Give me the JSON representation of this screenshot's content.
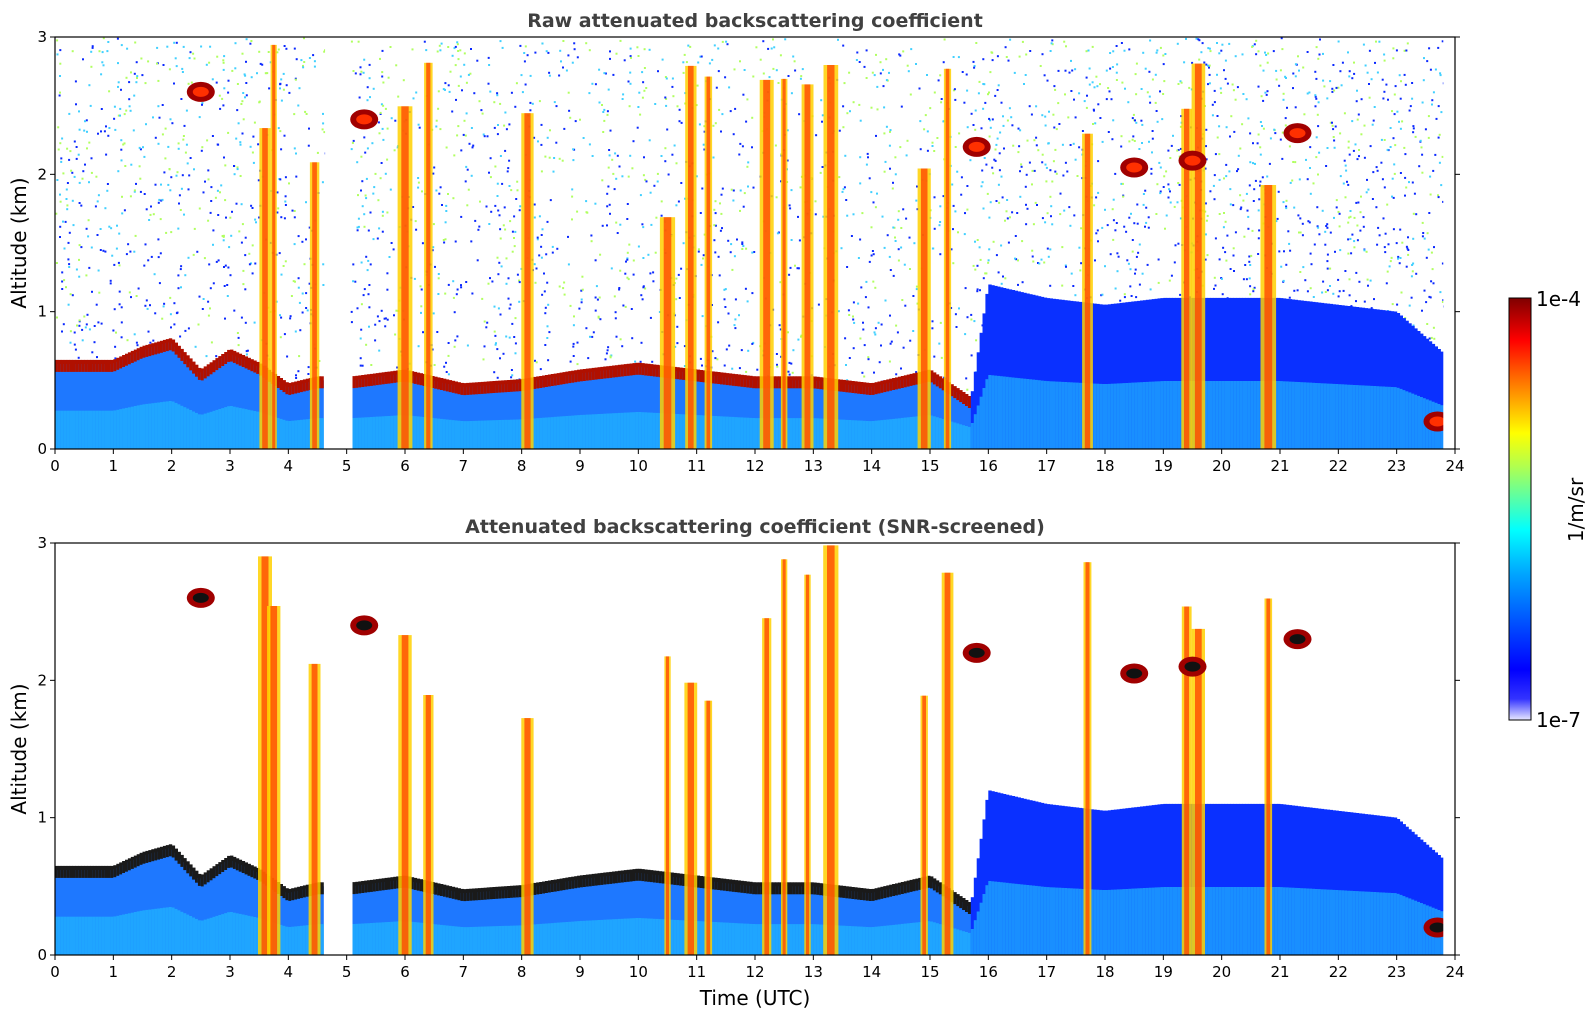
{
  "chart_data": [
    {
      "type": "heatmap",
      "title": "Raw attenuated backscattering coefficient",
      "xlabel": "",
      "ylabel": "Altitude (km)",
      "xlim": [
        0,
        24
      ],
      "ylim": [
        0,
        3
      ],
      "xticks": [
        "0",
        "1",
        "2",
        "3",
        "4",
        "5",
        "6",
        "7",
        "8",
        "9",
        "10",
        "11",
        "12",
        "13",
        "14",
        "15",
        "16",
        "17",
        "18",
        "19",
        "20",
        "21",
        "22",
        "23",
        "24"
      ],
      "yticks": [
        "0",
        "1",
        "2",
        "3"
      ],
      "data_gap_hours": [
        4.63,
        5.05
      ],
      "boundary_layer_top_km": [
        [
          0.0,
          0.62
        ],
        [
          1.0,
          0.62
        ],
        [
          1.5,
          0.72
        ],
        [
          2.0,
          0.78
        ],
        [
          2.5,
          0.55
        ],
        [
          3.0,
          0.7
        ],
        [
          3.5,
          0.6
        ],
        [
          4.0,
          0.45
        ],
        [
          4.5,
          0.5
        ],
        [
          5.1,
          0.5
        ],
        [
          6.0,
          0.55
        ],
        [
          7.0,
          0.45
        ],
        [
          8.0,
          0.48
        ],
        [
          9.0,
          0.55
        ],
        [
          10.0,
          0.6
        ],
        [
          11.0,
          0.55
        ],
        [
          12.0,
          0.5
        ],
        [
          13.0,
          0.5
        ],
        [
          14.0,
          0.45
        ],
        [
          15.0,
          0.55
        ],
        [
          15.7,
          0.35
        ],
        [
          16.0,
          1.2
        ],
        [
          17.0,
          1.1
        ],
        [
          18.0,
          1.05
        ],
        [
          19.0,
          1.1
        ],
        [
          20.0,
          1.1
        ],
        [
          21.0,
          1.1
        ],
        [
          22.0,
          1.05
        ],
        [
          23.0,
          1.0
        ],
        [
          23.8,
          0.7
        ]
      ],
      "precipitation_streaks_hours": [
        3.6,
        3.75,
        4.45,
        6.0,
        6.4,
        8.1,
        10.5,
        10.9,
        11.2,
        12.2,
        12.5,
        12.9,
        13.3,
        14.9,
        15.3,
        17.7,
        19.4,
        19.6,
        20.8
      ],
      "cloud_patches": [
        {
          "t": 2.5,
          "z": 2.6
        },
        {
          "t": 5.3,
          "z": 2.4
        },
        {
          "t": 15.8,
          "z": 2.2
        },
        {
          "t": 18.5,
          "z": 2.05
        },
        {
          "t": 19.5,
          "z": 2.1
        },
        {
          "t": 21.3,
          "z": 2.3
        },
        {
          "t": 23.7,
          "z": 0.2
        }
      ]
    },
    {
      "type": "heatmap",
      "title": "Attenuated backscattering coefficient (SNR-screened)",
      "xlabel": "Time (UTC)",
      "ylabel": "Altitude (km)",
      "xlim": [
        0,
        24
      ],
      "ylim": [
        0,
        3
      ],
      "xticks": [
        "0",
        "1",
        "2",
        "3",
        "4",
        "5",
        "6",
        "7",
        "8",
        "9",
        "10",
        "11",
        "12",
        "13",
        "14",
        "15",
        "16",
        "17",
        "18",
        "19",
        "20",
        "21",
        "22",
        "23",
        "24"
      ],
      "yticks": [
        "0",
        "1",
        "2",
        "3"
      ],
      "screened": true
    }
  ],
  "colorbar": {
    "label": "1/m/sr",
    "max_label": "1e-4",
    "min_label": "1e-7",
    "colormap": "jet",
    "colors": [
      "#0000b4",
      "#0000ff",
      "#00ffff",
      "#ffff00",
      "#ff0000",
      "#7f0000"
    ]
  }
}
